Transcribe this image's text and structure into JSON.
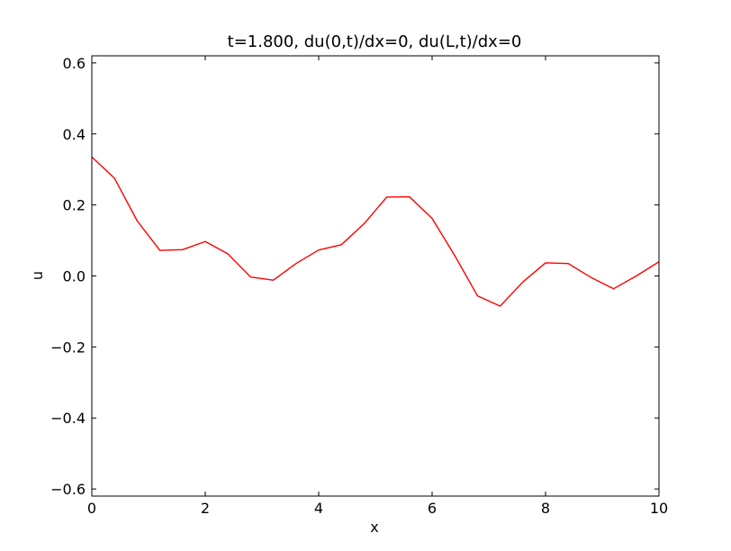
{
  "chart_data": {
    "type": "line",
    "title": "t=1.800, du(0,t)/dx=0, du(L,t)/dx=0",
    "xlabel": "x",
    "ylabel": "u",
    "xlim": [
      0,
      10
    ],
    "ylim": [
      -0.62,
      0.62
    ],
    "xticks": [
      0,
      2,
      4,
      6,
      8,
      10
    ],
    "xtick_labels": [
      "0",
      "2",
      "4",
      "6",
      "8",
      "10"
    ],
    "yticks": [
      -0.6,
      -0.4,
      -0.2,
      0.0,
      0.2,
      0.4,
      0.6
    ],
    "ytick_labels": [
      "−0.6",
      "−0.4",
      "−0.2",
      "0.0",
      "0.2",
      "0.4",
      "0.6"
    ],
    "grid": false,
    "series": [
      {
        "color": "#ff0000",
        "x": [
          0.0,
          0.4,
          0.8,
          1.2,
          1.6,
          2.0,
          2.4,
          2.8,
          3.2,
          3.6,
          4.0,
          4.4,
          4.8,
          5.2,
          5.6,
          6.0,
          6.4,
          6.8,
          7.2,
          7.6,
          8.0,
          8.4,
          8.8,
          9.2,
          9.6,
          10.0
        ],
        "y": [
          0.335,
          0.275,
          0.155,
          0.072,
          0.074,
          0.097,
          0.062,
          -0.003,
          -0.012,
          0.035,
          0.073,
          0.088,
          0.147,
          0.222,
          0.223,
          0.162,
          0.057,
          -0.056,
          -0.085,
          -0.017,
          0.037,
          0.035,
          -0.004,
          -0.036,
          0.0,
          0.04
        ]
      }
    ]
  }
}
